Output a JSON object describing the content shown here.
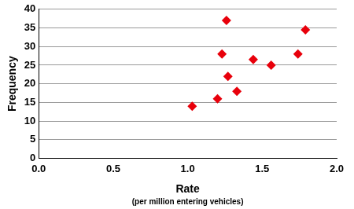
{
  "chart_data": {
    "type": "scatter",
    "x_label": "Rate",
    "y_label": "Frequency",
    "annotations": [
      "(per million entering vehicles)"
    ],
    "x": [
      1.03,
      1.2,
      1.23,
      1.26,
      1.27,
      1.33,
      1.44,
      1.56,
      1.74,
      1.79
    ],
    "values": [
      14,
      16,
      28,
      37,
      22,
      18,
      26.5,
      25,
      28,
      34.5
    ],
    "color": "#e8000b",
    "marker": "diamond",
    "xlim": [
      0,
      2
    ],
    "xticks": [
      {
        "value": 0,
        "label": "0.0"
      },
      {
        "value": 0.5,
        "label": "0.5"
      },
      {
        "value": 1,
        "label": "1.0"
      },
      {
        "value": 1.5,
        "label": "1.5"
      },
      {
        "value": 2,
        "label": "2.0"
      }
    ],
    "ylim": [
      0,
      40
    ],
    "yticks": [
      0,
      5,
      10,
      15,
      20,
      25,
      30,
      35,
      40
    ],
    "grid": "y"
  }
}
